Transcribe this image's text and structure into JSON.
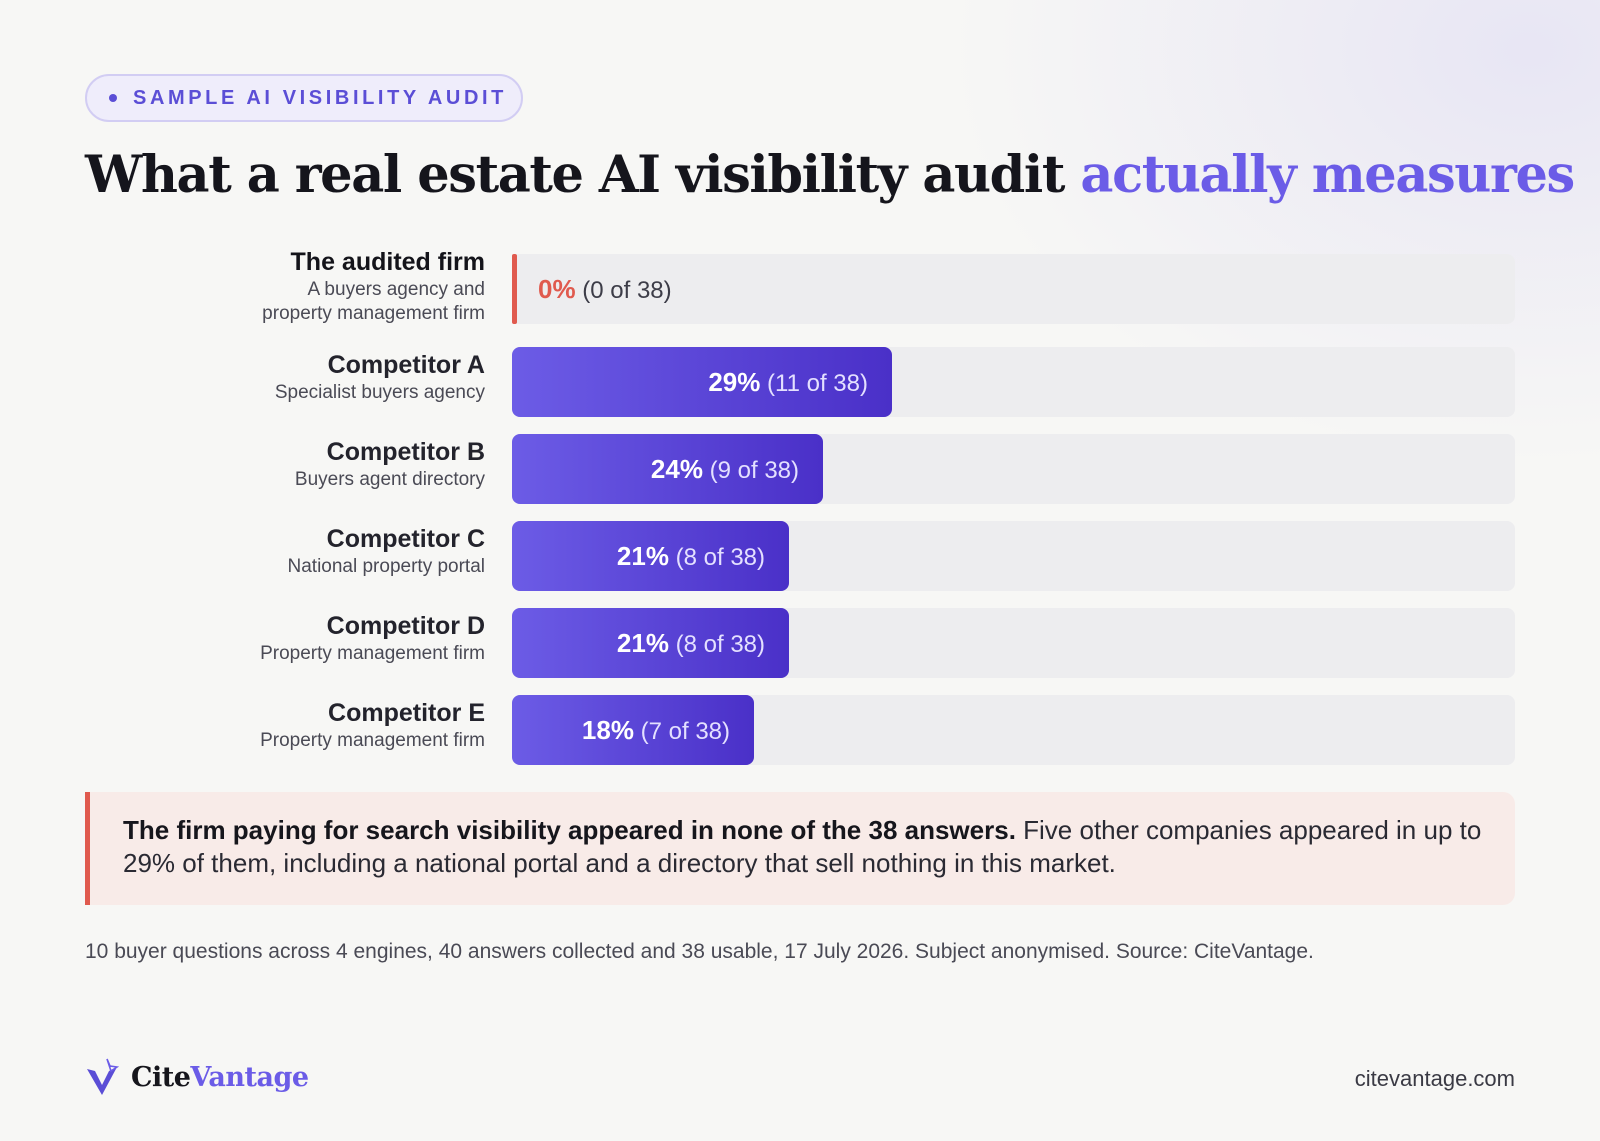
{
  "badge": {
    "label": "SAMPLE AI VISIBILITY AUDIT"
  },
  "title": {
    "main": "What a real estate AI visibility audit ",
    "accent": "actually measures"
  },
  "chart_data": {
    "type": "bar",
    "orientation": "horizontal",
    "total": 38,
    "xlim": [
      0,
      29
    ],
    "categories": [
      "The audited firm",
      "Competitor A",
      "Competitor B",
      "Competitor C",
      "Competitor D",
      "Competitor E"
    ],
    "descriptions": [
      "A buyers agency and property management firm",
      "Specialist buyers agency",
      "Buyers agent directory",
      "National property portal",
      "Property management firm",
      "Property management firm"
    ],
    "values": [
      0,
      11,
      9,
      8,
      8,
      7
    ],
    "percent_labels": [
      "0%",
      "29%",
      "24%",
      "21%",
      "21%",
      "18%"
    ],
    "count_labels": [
      "(0 of 38)",
      "(11 of 38)",
      "(9 of 38)",
      "(8 of 38)",
      "(8 of 38)",
      "(7 of 38)"
    ]
  },
  "callout": {
    "bold": "The firm paying for search visibility appeared in none of the 38 answers.",
    "text": " Five other companies appeared in up to 29% of them, including a national portal and a directory that sell nothing in this market."
  },
  "footnote": "10 buyer questions across 4 engines, 40 answers collected and 38 usable, 17 July 2026. Subject anonymised. Source: CiteVantage.",
  "brand": {
    "name_part1": "Cite",
    "name_part2": "Vantage",
    "site": "citevantage.com"
  },
  "colors": {
    "accent": "#6b5ce7",
    "bar_start": "#6c5ce6",
    "bar_end": "#4a30c8",
    "alert": "#e05a4e",
    "track": "#ededef"
  }
}
